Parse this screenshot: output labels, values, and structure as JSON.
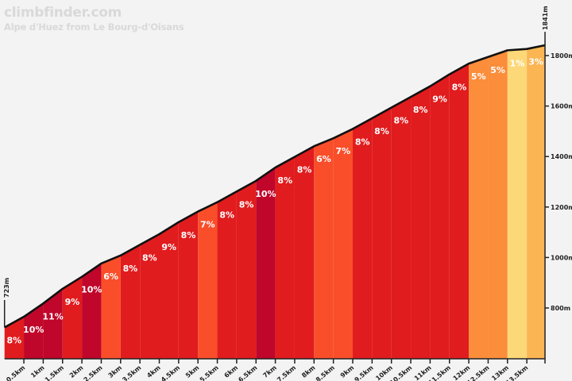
{
  "header": {
    "brand": "climbfinder.com",
    "title": "Alpe d'Huez from Le Bourg-d'Oisans"
  },
  "chart_data": {
    "type": "area",
    "title": "Alpe d'Huez from Le Bourg-d'Oisans",
    "xlabel": "",
    "ylabel": "",
    "distance_km": 13.97,
    "segment_length_km": 0.5,
    "start_elevation_m": 723,
    "end_elevation_m": 1841,
    "start_label": "723m",
    "end_label": "1841m",
    "ylim": [
      600,
      1850
    ],
    "y_ticks": [
      {
        "value": 800,
        "label": "800m"
      },
      {
        "value": 1000,
        "label": "1000m"
      },
      {
        "value": 1200,
        "label": "1200m"
      },
      {
        "value": 1400,
        "label": "1400m"
      },
      {
        "value": 1600,
        "label": "1600m"
      },
      {
        "value": 1800,
        "label": "1800m"
      }
    ],
    "x_ticks": [
      {
        "value": 0.5,
        "label": "0.5km"
      },
      {
        "value": 1,
        "label": "1km"
      },
      {
        "value": 1.5,
        "label": "1.5km"
      },
      {
        "value": 2,
        "label": "2km"
      },
      {
        "value": 2.5,
        "label": "2.5km"
      },
      {
        "value": 3,
        "label": "3km"
      },
      {
        "value": 3.5,
        "label": "3.5km"
      },
      {
        "value": 4,
        "label": "4km"
      },
      {
        "value": 4.5,
        "label": "4.5km"
      },
      {
        "value": 5,
        "label": "5km"
      },
      {
        "value": 5.5,
        "label": "5.5km"
      },
      {
        "value": 6,
        "label": "6km"
      },
      {
        "value": 6.5,
        "label": "6.5km"
      },
      {
        "value": 7,
        "label": "7km"
      },
      {
        "value": 7.5,
        "label": "7.5km"
      },
      {
        "value": 8,
        "label": "8km"
      },
      {
        "value": 8.5,
        "label": "8.5km"
      },
      {
        "value": 9,
        "label": "9km"
      },
      {
        "value": 9.5,
        "label": "9.5km"
      },
      {
        "value": 10,
        "label": "10km"
      },
      {
        "value": 10.5,
        "label": "10.5km"
      },
      {
        "value": 11,
        "label": "11km"
      },
      {
        "value": 11.5,
        "label": "11.5km"
      },
      {
        "value": 12,
        "label": "12km"
      },
      {
        "value": 12.5,
        "label": "12.5km"
      },
      {
        "value": 13,
        "label": "13km"
      },
      {
        "value": 13.5,
        "label": "13.5km"
      }
    ],
    "segments": [
      {
        "grade": 8,
        "label": "8%"
      },
      {
        "grade": 10,
        "label": "10%"
      },
      {
        "grade": 11,
        "label": "11%"
      },
      {
        "grade": 9,
        "label": "9%"
      },
      {
        "grade": 10,
        "label": "10%"
      },
      {
        "grade": 6,
        "label": "6%"
      },
      {
        "grade": 8,
        "label": "8%"
      },
      {
        "grade": 8,
        "label": "8%"
      },
      {
        "grade": 9,
        "label": "9%"
      },
      {
        "grade": 8,
        "label": "8%"
      },
      {
        "grade": 7,
        "label": "7%"
      },
      {
        "grade": 8,
        "label": "8%"
      },
      {
        "grade": 8,
        "label": "8%"
      },
      {
        "grade": 10,
        "label": "10%"
      },
      {
        "grade": 8,
        "label": "8%"
      },
      {
        "grade": 8,
        "label": "8%"
      },
      {
        "grade": 6,
        "label": "6%"
      },
      {
        "grade": 7,
        "label": "7%"
      },
      {
        "grade": 8,
        "label": "8%"
      },
      {
        "grade": 8,
        "label": "8%"
      },
      {
        "grade": 8,
        "label": "8%"
      },
      {
        "grade": 8,
        "label": "8%"
      },
      {
        "grade": 9,
        "label": "9%"
      },
      {
        "grade": 8,
        "label": "8%"
      },
      {
        "grade": 5,
        "label": "5%"
      },
      {
        "grade": 5,
        "label": "5%"
      },
      {
        "grade": 1,
        "label": "1%"
      },
      {
        "grade": 3,
        "label": "3%"
      }
    ],
    "grade_colors": {
      "1": "#fdd878",
      "3": "#fbb553",
      "5": "#fb8d3b",
      "6": "#fa4e2a",
      "7": "#fa4e2a",
      "8": "#e11c1e",
      "9": "#e11c1e",
      "10": "#c0062a",
      "11": "#c0062a"
    },
    "background": "#f3f3f3",
    "grid": false
  }
}
